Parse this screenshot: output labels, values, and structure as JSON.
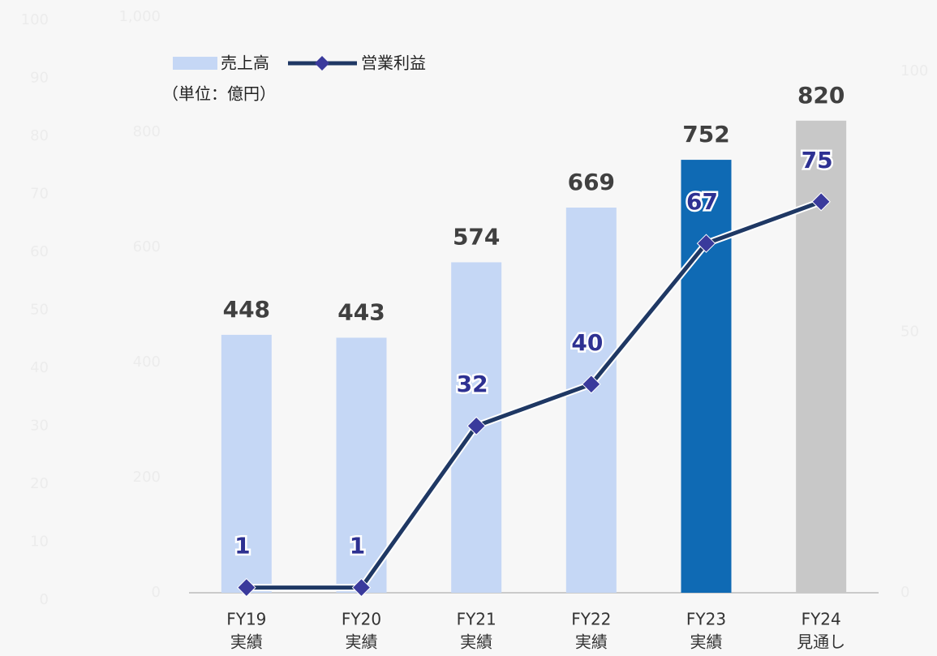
{
  "chart_data": {
    "type": "bar-line",
    "categories": [
      [
        "FY19",
        "実績"
      ],
      [
        "FY20",
        "実績"
      ],
      [
        "FY21",
        "実績"
      ],
      [
        "FY22",
        "実績"
      ],
      [
        "FY23",
        "実績"
      ],
      [
        "FY24",
        "見通し"
      ]
    ],
    "unit_note": "（単位：億円）",
    "series": [
      {
        "name": "売上高",
        "type": "bar",
        "color": "#c5d7f5",
        "colors": [
          "#c5d7f5",
          "#c5d7f5",
          "#c5d7f5",
          "#c5d7f5",
          "#0f6ab4",
          "#c8c8c8"
        ],
        "values": [
          448,
          443,
          574,
          669,
          752,
          820
        ]
      },
      {
        "name": "営業利益",
        "type": "line",
        "axis": "y2",
        "color": "#1f3864",
        "marker_color": "#3a3a9c",
        "values": [
          1,
          1,
          32,
          40,
          67,
          75
        ]
      }
    ],
    "ylim": [
      0,
      1000
    ],
    "yticks": [
      0,
      200,
      400,
      600,
      800,
      {
        "value": 1000,
        "label": "1,000"
      }
    ],
    "y2lim": [
      0,
      100
    ],
    "y2ticks": [
      0,
      50,
      100
    ],
    "y3lim": [
      0,
      100
    ],
    "y3ticks": [
      0,
      10,
      20,
      30,
      40,
      50,
      60,
      70,
      80,
      90,
      100
    ],
    "legend": "top-left"
  }
}
